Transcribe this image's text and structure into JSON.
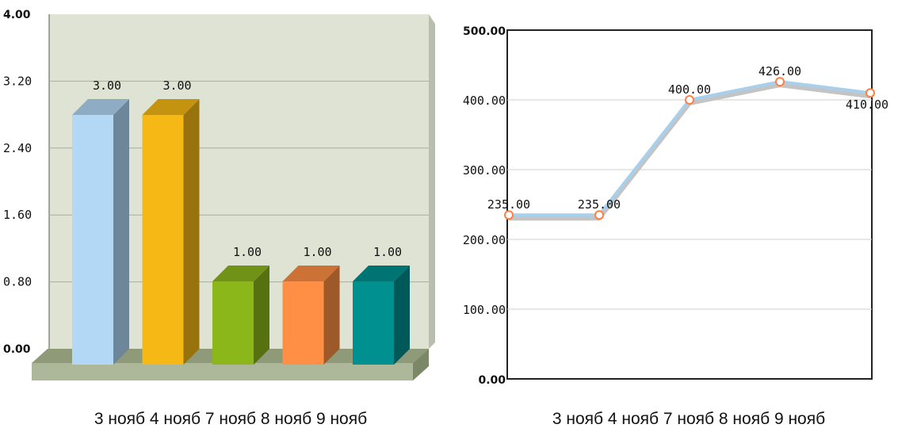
{
  "chart_data": [
    {
      "type": "bar",
      "style": "3d",
      "categories": [
        "3 нояб",
        "4 нояб",
        "7 нояб",
        "8 нояб",
        "9 нояб"
      ],
      "values": [
        3.0,
        3.0,
        1.0,
        1.0,
        1.0
      ],
      "value_labels": [
        "3.00",
        "3.00",
        "1.00",
        "1.00",
        "1.00"
      ],
      "yticks": [
        "0.00",
        "0.80",
        "1.60",
        "2.40",
        "3.20",
        "4.00"
      ],
      "ylim": [
        0,
        4
      ],
      "bar_colors": [
        "#b2d8f6",
        "#f5b814",
        "#8cb71b",
        "#ff8f45",
        "#009090"
      ],
      "background": "#dfe3d4",
      "grid": true,
      "x_caption": "3 нояб 4 нояб 7 нояб 8 нояб 9 нояб"
    },
    {
      "type": "line",
      "categories": [
        "3 нояб",
        "4 нояб",
        "7 нояб",
        "8 нояб",
        "9 нояб"
      ],
      "values": [
        235,
        235,
        400,
        426,
        410
      ],
      "value_labels": [
        "235.00",
        "235.00",
        "400.00",
        "426.00",
        "410.00"
      ],
      "yticks": [
        "0.00",
        "100.00",
        "200.00",
        "300.00",
        "400.00",
        "500.00"
      ],
      "ylim": [
        0,
        500
      ],
      "line_color": "#a8d0ec",
      "marker_color": "#ff7f3f",
      "grid": true,
      "x_caption": "3 нояб 4 нояб 7 нояб 8 нояб 9 нояб"
    }
  ]
}
